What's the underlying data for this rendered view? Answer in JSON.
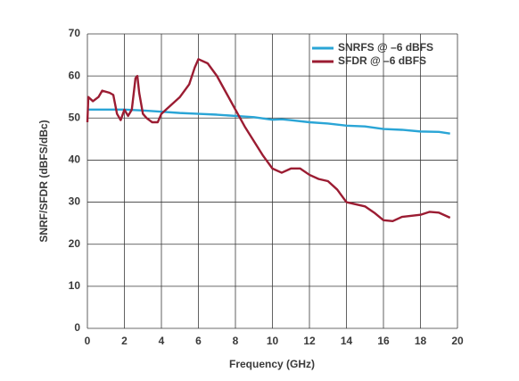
{
  "chart_data": {
    "type": "line",
    "xlabel": "Frequency (GHz)",
    "ylabel": "SNRF/SFDR (dBFS/dBc)",
    "xlim": [
      0,
      20
    ],
    "xticks": [
      0,
      2,
      4,
      6,
      8,
      10,
      12,
      14,
      16,
      18,
      20
    ],
    "ylim": [
      0,
      70
    ],
    "yticks": [
      0,
      10,
      20,
      30,
      40,
      50,
      60,
      70
    ],
    "grid": true,
    "legend": "upper right",
    "series": [
      {
        "name": "SNRFS @ –6 dBFS",
        "color": "#2aa5d6",
        "x": [
          0,
          1,
          2,
          3,
          4,
          5,
          6,
          7,
          8,
          9,
          10,
          10.5,
          11,
          12,
          13,
          14,
          15,
          16,
          17,
          18,
          19,
          19.6
        ],
        "values": [
          52,
          52,
          52,
          51.8,
          51.5,
          51.2,
          51,
          50.8,
          50.5,
          50.2,
          49.6,
          49.7,
          49.5,
          49,
          48.7,
          48.2,
          48,
          47.4,
          47.2,
          46.8,
          46.7,
          46.3
        ]
      },
      {
        "name": "SFDR @ –6 dBFS",
        "color": "#9b1c32",
        "x": [
          0,
          0.05,
          0.3,
          0.6,
          0.8,
          1.2,
          1.4,
          1.6,
          1.8,
          2.0,
          2.2,
          2.4,
          2.6,
          2.7,
          2.8,
          3.0,
          3.2,
          3.5,
          3.8,
          4.0,
          4.5,
          5.0,
          5.5,
          5.8,
          6.0,
          6.5,
          7.0,
          7.5,
          8.0,
          8.5,
          9.0,
          9.5,
          10.0,
          10.5,
          11.0,
          11.5,
          12.0,
          12.5,
          13.0,
          13.5,
          14.0,
          15.0,
          15.5,
          16.0,
          16.5,
          17.0,
          18.0,
          18.5,
          19.0,
          19.6
        ],
        "values": [
          49,
          55,
          54,
          55,
          56.5,
          56,
          55.5,
          51,
          49.5,
          52,
          50.5,
          52,
          59.5,
          60,
          56,
          51,
          50,
          49,
          49,
          51,
          53,
          55,
          58,
          62,
          64,
          63,
          60,
          56,
          52,
          48,
          44.5,
          41,
          38,
          37,
          38,
          38,
          36.5,
          35.5,
          35,
          33,
          30,
          29,
          27.5,
          25.7,
          25.5,
          26.5,
          27,
          27.7,
          27.5,
          26.3
        ]
      }
    ]
  }
}
